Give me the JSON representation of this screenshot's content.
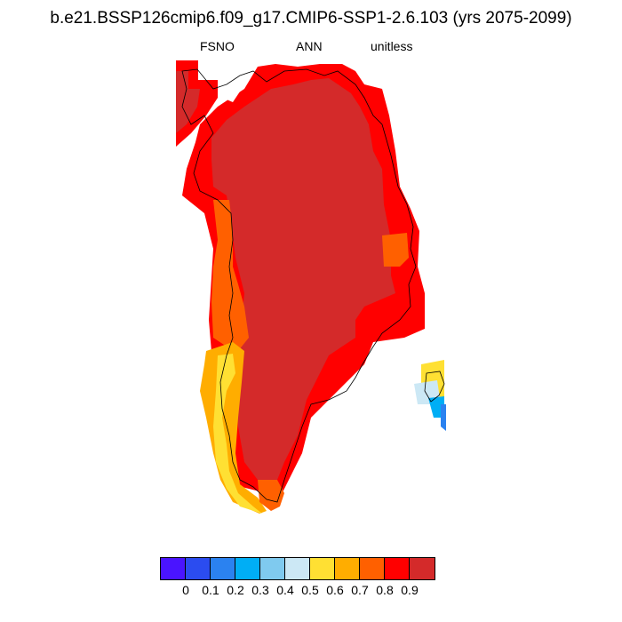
{
  "header": {
    "title": "b.e21.BSSP126cmip6.f09_g17.CMIP6-SSP1-2.6.103 (yrs 2075-2099)",
    "variable": "FSNO",
    "period": "ANN",
    "units": "unitless"
  },
  "colorbar": {
    "colors": [
      "#4a14ff",
      "#2b4cf0",
      "#2b82f0",
      "#00aef5",
      "#7fcaef",
      "#cce8f5",
      "#ffe033",
      "#ffad00",
      "#ff6000",
      "#ff0000",
      "#d42a2a"
    ],
    "labels": [
      "0",
      "0.1",
      "0.2",
      "0.3",
      "0.4",
      "0.5",
      "0.6",
      "0.7",
      "0.8",
      "0.9"
    ]
  },
  "map": {
    "region": "Greenland",
    "legend_colors": {
      "high": "#d42a2a",
      "red": "#ff0000",
      "orange_red": "#ff6000",
      "orange": "#ffad00",
      "yellow": "#ffe033",
      "light_blue": "#cce8f5",
      "cyan": "#00aef5",
      "blue": "#2b82f0"
    }
  }
}
